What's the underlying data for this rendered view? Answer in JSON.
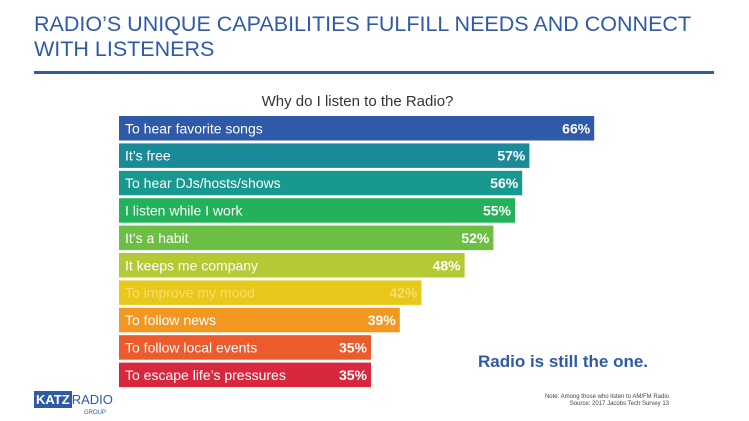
{
  "headline": "RADIO’S UNIQUE CAPABILITIES FULFILL NEEDS AND CONNECT WITH LISTENERS",
  "tagline": "Radio is still the one.",
  "logo": {
    "katz": "KATZ",
    "radio": "RADIO",
    "group": "GROUP"
  },
  "note": {
    "line1": "Note: Among those who listen to AM/FM Radio",
    "line2": "Source: 2017 Jacobs Tech Survey 13"
  },
  "colors": {
    "headline": "#2e5aa8",
    "bars": [
      "#2e5aa8",
      "#1a8a98",
      "#18998f",
      "#23b15a",
      "#6dbf43",
      "#b5c935",
      "#e8c81a",
      "#f2971f",
      "#ec5b2b",
      "#d8283d"
    ],
    "improve_mood_text": "#f6de6b"
  },
  "chart_data": {
    "type": "bar",
    "orientation": "horizontal",
    "title": "Why do I listen to the Radio?",
    "categories": [
      "To hear favorite songs",
      "It’s free",
      "To hear DJs/hosts/shows",
      "I listen while I work",
      "It’s a habit",
      "It keeps me company",
      "To improve my mood",
      "To follow news",
      "To follow local events",
      "To escape life’s pressures"
    ],
    "values": [
      66,
      57,
      56,
      55,
      52,
      48,
      42,
      39,
      35,
      35
    ],
    "value_labels": [
      "66%",
      "57%",
      "56%",
      "55%",
      "52%",
      "48%",
      "42%",
      "39%",
      "35%",
      "35%"
    ],
    "unit": "%",
    "grid": false,
    "legend": "none"
  }
}
